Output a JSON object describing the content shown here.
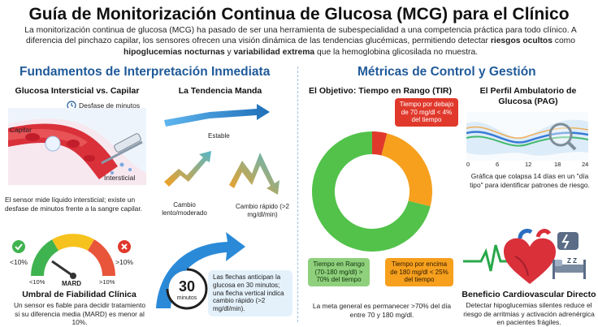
{
  "header": {
    "title": "Guía de Monitorización Continua de Glucosa (MCG) para el Clínico",
    "intro_1": "La monitorización continua de glucosa (MCG) ha pasado de ser una herramienta de subespecialidad a una competencia práctica para todo clínico. A diferencia del pinchazo capilar, los sensores ofrecen una visión dinámica de las tendencias glucémicas, permitiendo detectar ",
    "intro_b1": "riesgos ocultos",
    "intro_2": " como ",
    "intro_b2": "hipoglucemias nocturnas",
    "intro_3": " y ",
    "intro_b3": "variabilidad extrema",
    "intro_4": " que la hemoglobina glicosilada no muestra."
  },
  "left": {
    "section_title": "Fundamentos de Interpretación Inmediata",
    "glucose": {
      "title": "Glucosa Intersticial vs. Capilar",
      "delay_label": "Desfase de minutos",
      "capillary_label": "Capilar",
      "interstitial_label": "Intersticial",
      "caption": "El sensor mide líquido intersticial; existe un desfase de minutos frente a la sangre capilar."
    },
    "trend": {
      "title": "La Tendencia Manda",
      "stable_label": "Estable",
      "moderate_label": "Cambio lento/moderado",
      "rapid_label": "Cambio rápido (>2 mg/dl/min)"
    },
    "mard": {
      "less_label": "<10%",
      "more_label": ">10%",
      "gauge_left": "<10%",
      "gauge_right": ">10%",
      "gauge_name": "MARD",
      "title": "Umbral de Fiabilidad Clínica",
      "caption": "Un sensor es fiable para decidir tratamiento si su diferencia media (MARD) es menor al 10%."
    },
    "arrows": {
      "clock_number": "30",
      "clock_unit": "minutos",
      "note": "Las flechas anticipan la glucosa en 30 minutos; una flecha vertical indica cambio rápido (>2 mg/dl/min)."
    }
  },
  "right": {
    "section_title": "Métricas de Control y Gestión",
    "tir": {
      "title": "El Objetivo: Tiempo en Rango (TIR)",
      "below_label": "Tiempo por debajo de 70 mg/dl < 4% del tiempo",
      "in_range_label": "Tiempo en Rango (70-180 mg/dl) > 70% del tiempo",
      "above_label": "Tiempo por encima de 180 mg/dl < 25% del tiempo",
      "caption": "La meta general es permanecer >70% del día entre 70 y 180 mg/dl.",
      "colors": {
        "in_range": "#52c24a",
        "above": "#f6a01e",
        "below": "#e0392c"
      }
    },
    "pag": {
      "title": "El Perfil Ambulatorio de Glucosa (PAG)",
      "ticks": [
        "0",
        "6",
        "12",
        "18",
        "24"
      ],
      "caption": "Gráfica que colapsa 14 días en un \"día tipo\" para identificar patrones de riesgo."
    },
    "cardio": {
      "title": "Beneficio Cardiovascular Directo",
      "caption": "Detectar hipoglucemias silentes reduce el riesgo de arritmias y activación adrenérgica en pacientes frágiles.",
      "sleep_label": "Z Z"
    }
  }
}
